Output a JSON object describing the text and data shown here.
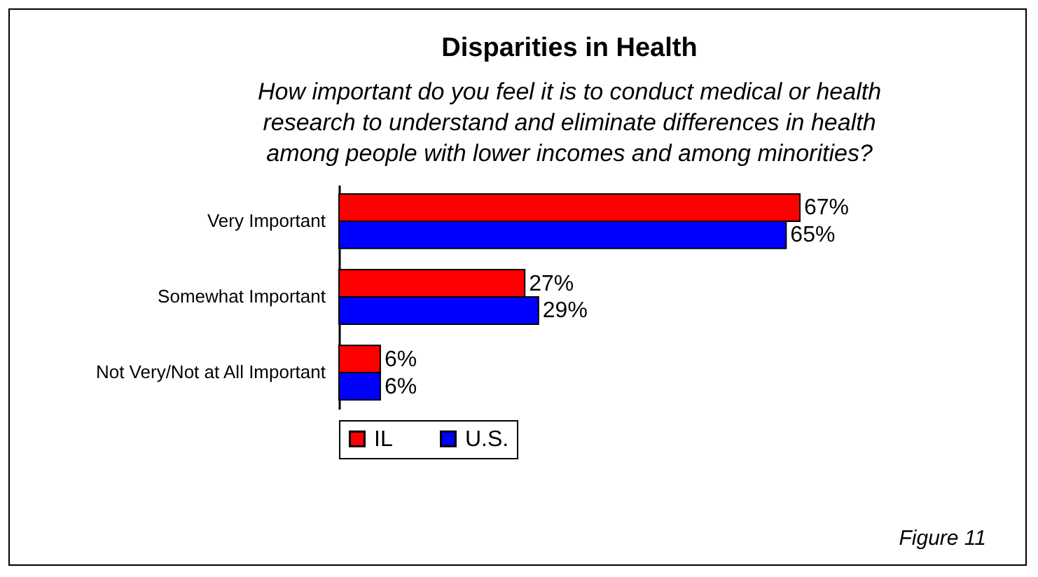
{
  "chart_data": {
    "type": "bar",
    "orientation": "horizontal",
    "title": "Disparities in Health",
    "subtitle": "How important do you feel it is to conduct medical or health research to understand and eliminate differences in health among people with lower incomes and among minorities?",
    "categories": [
      "Very Important",
      "Somewhat Important",
      "Not Very/Not at All Important"
    ],
    "series": [
      {
        "name": "IL",
        "color": "#ff0000",
        "values": [
          67,
          27,
          6
        ],
        "value_labels": [
          "67%",
          "27%",
          "6%"
        ]
      },
      {
        "name": "U.S.",
        "color": "#0000ff",
        "values": [
          65,
          29,
          6
        ],
        "value_labels": [
          "65%",
          "29%",
          "6%"
        ]
      }
    ],
    "legend": "bottom",
    "annotations": [
      "Figure 11"
    ]
  }
}
